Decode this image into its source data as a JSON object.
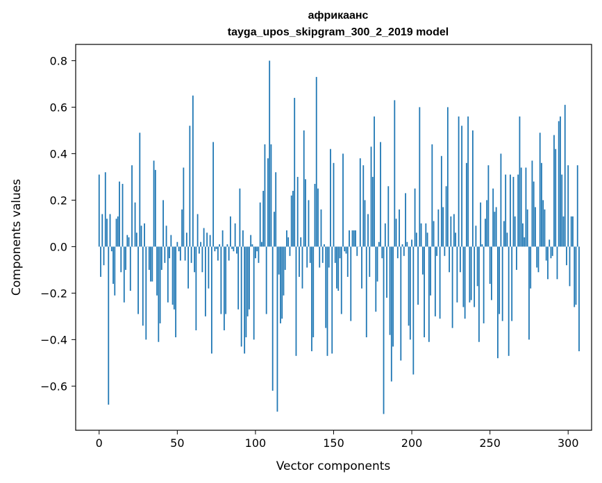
{
  "chart_data": {
    "type": "bar",
    "title": "африкаанс",
    "subtitle": "tayga_upos_skipgram_300_2_2019 model",
    "xlabel": "Vector components",
    "ylabel": "Components values",
    "xlim": [
      -15,
      315
    ],
    "ylim": [
      -0.79,
      0.87
    ],
    "x_ticks": [
      0,
      50,
      100,
      150,
      200,
      250,
      300
    ],
    "x_tick_labels": [
      "0",
      "50",
      "100",
      "150",
      "200",
      "250",
      "300"
    ],
    "y_ticks": [
      -0.6,
      -0.4,
      -0.2,
      0.0,
      0.2,
      0.4,
      0.6,
      0.8
    ],
    "y_tick_labels": [
      "−0.6",
      "−0.4",
      "−0.2",
      "0.0",
      "0.2",
      "0.4",
      "0.6",
      "0.8"
    ],
    "bar_color": "#1f77b4",
    "grid": false,
    "series": [
      {
        "values": [
          0.31,
          -0.13,
          0.14,
          -0.08,
          0.32,
          0.12,
          -0.68,
          0.14,
          -0.02,
          -0.16,
          -0.21,
          0.12,
          0.13,
          0.28,
          -0.11,
          0.27,
          -0.24,
          -0.1,
          0.05,
          0.04,
          -0.19,
          0.35,
          0.0,
          0.19,
          0.06,
          -0.29,
          0.49,
          0.09,
          -0.34,
          0.1,
          -0.4,
          0.0,
          -0.1,
          -0.15,
          -0.15,
          0.37,
          0.33,
          -0.21,
          -0.41,
          -0.33,
          -0.1,
          0.2,
          -0.07,
          0.09,
          -0.24,
          -0.05,
          0.05,
          -0.25,
          -0.27,
          -0.39,
          0.02,
          -0.02,
          -0.06,
          0.16,
          0.34,
          -0.06,
          0.06,
          -0.18,
          0.52,
          -0.07,
          0.65,
          -0.11,
          -0.36,
          0.14,
          -0.03,
          0.02,
          -0.11,
          0.08,
          -0.3,
          0.06,
          -0.18,
          0.05,
          -0.46,
          0.45,
          -0.02,
          -0.01,
          -0.06,
          0.01,
          -0.29,
          0.07,
          -0.36,
          -0.29,
          0.01,
          -0.06,
          0.13,
          -0.01,
          -0.02,
          0.1,
          -0.03,
          -0.27,
          0.25,
          -0.43,
          0.07,
          -0.46,
          -0.39,
          -0.3,
          -0.27,
          0.05,
          0.01,
          -0.4,
          -0.05,
          -0.02,
          -0.07,
          0.19,
          0.02,
          0.24,
          0.44,
          -0.29,
          0.38,
          0.8,
          0.44,
          -0.62,
          0.15,
          0.32,
          -0.71,
          -0.12,
          -0.33,
          -0.31,
          -0.21,
          -0.1,
          0.07,
          0.04,
          -0.04,
          0.22,
          0.24,
          0.64,
          -0.47,
          0.3,
          -0.13,
          0.04,
          -0.18,
          0.5,
          0.29,
          -0.09,
          0.2,
          -0.07,
          -0.45,
          -0.39,
          0.27,
          0.73,
          0.25,
          -0.09,
          0.16,
          -0.07,
          0.01,
          -0.35,
          -0.47,
          -0.09,
          0.42,
          -0.46,
          0.36,
          -0.07,
          -0.18,
          -0.19,
          -0.05,
          -0.29,
          0.4,
          -0.02,
          -0.03,
          -0.13,
          0.07,
          -0.32,
          0.07,
          0.07,
          0.07,
          -0.04,
          0.0,
          0.38,
          -0.18,
          0.35,
          0.2,
          -0.39,
          0.14,
          -0.13,
          0.43,
          0.3,
          0.56,
          -0.28,
          -0.15,
          0.02,
          0.45,
          -0.05,
          -0.72,
          0.1,
          -0.22,
          0.26,
          -0.38,
          -0.58,
          -0.43,
          0.63,
          0.12,
          -0.05,
          0.16,
          -0.49,
          0.01,
          -0.04,
          0.23,
          0.02,
          -0.34,
          -0.4,
          0.03,
          -0.55,
          0.25,
          0.06,
          -0.25,
          0.6,
          0.1,
          -0.12,
          -0.39,
          0.1,
          0.06,
          -0.41,
          -0.21,
          0.44,
          0.11,
          -0.3,
          -0.04,
          0.16,
          -0.31,
          0.39,
          0.17,
          -0.04,
          0.26,
          0.6,
          -0.11,
          0.13,
          -0.35,
          0.14,
          0.06,
          -0.24,
          0.56,
          -0.11,
          0.52,
          -0.26,
          -0.31,
          0.36,
          0.56,
          -0.24,
          -0.23,
          0.5,
          -0.26,
          0.09,
          -0.17,
          -0.41,
          0.19,
          0.01,
          -0.33,
          0.12,
          0.2,
          0.35,
          -0.16,
          -0.23,
          0.25,
          0.15,
          0.17,
          -0.48,
          -0.29,
          0.4,
          -0.32,
          0.11,
          0.31,
          0.06,
          -0.47,
          0.31,
          -0.32,
          0.3,
          0.13,
          -0.1,
          0.31,
          0.56,
          0.34,
          0.1,
          0.04,
          0.34,
          0.16,
          -0.4,
          -0.18,
          0.37,
          0.28,
          0.17,
          -0.09,
          -0.11,
          0.49,
          0.36,
          0.2,
          0.16,
          -0.06,
          -0.14,
          0.03,
          -0.05,
          -0.04,
          0.48,
          0.42,
          -0.14,
          0.54,
          0.56,
          0.31,
          0.13,
          0.61,
          -0.08,
          0.35,
          -0.17,
          0.13,
          0.13,
          -0.26,
          -0.25,
          0.35,
          -0.45
        ]
      }
    ]
  }
}
